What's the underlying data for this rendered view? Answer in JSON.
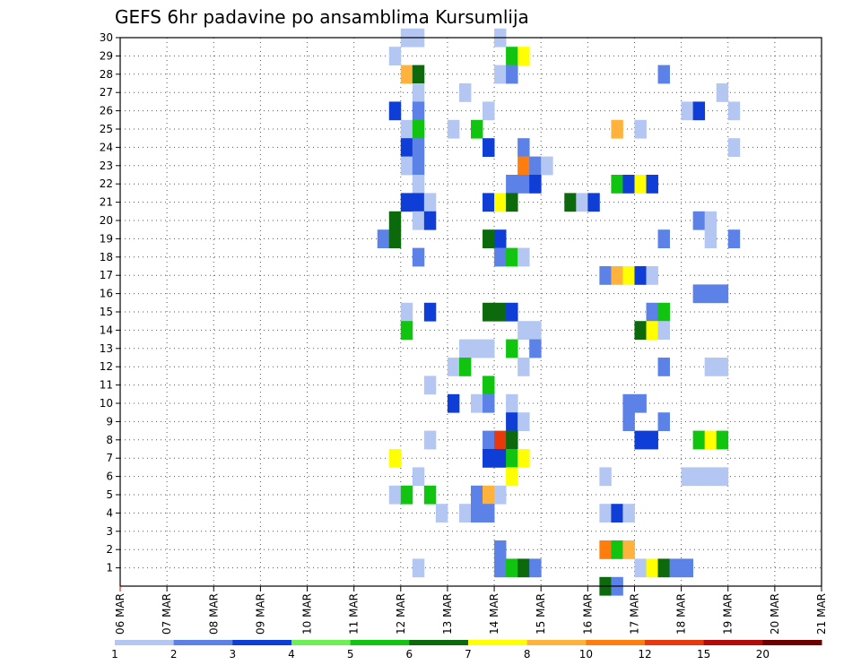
{
  "chart_data": {
    "type": "heatmap",
    "title": "GEFS 6hr padavine po ansamblima Kursumlija",
    "xlabel": "",
    "ylabel": "",
    "x_ticks": [
      "06 MAR",
      "07 MAR",
      "08 MAR",
      "09 MAR",
      "10 MAR",
      "11 MAR",
      "12 MAR",
      "13 MAR",
      "14 MAR",
      "15 MAR",
      "16 MAR",
      "17 MAR",
      "18 MAR",
      "19 MAR",
      "20 MAR",
      "21 MAR"
    ],
    "y_ticks": [
      "1",
      "2",
      "3",
      "4",
      "5",
      "6",
      "7",
      "8",
      "9",
      "10",
      "11",
      "12",
      "13",
      "14",
      "15",
      "16",
      "17",
      "18",
      "19",
      "20",
      "21",
      "22",
      "23",
      "24",
      "25",
      "26",
      "27",
      "28",
      "29",
      "30"
    ],
    "xlim": [
      "06 MAR",
      "21 MAR"
    ],
    "ylim": [
      0,
      30
    ],
    "time_step_hours": 6,
    "grid": true,
    "legend": {
      "placement": "bottom",
      "levels": [
        "1",
        "2",
        "3",
        "4",
        "5",
        "6",
        "7",
        "8",
        "10",
        "12",
        "15",
        "20"
      ],
      "colors": [
        "#b4c6f2",
        "#5c82e8",
        "#0f3ed6",
        "#6ef055",
        "#10c410",
        "#0c6a0c",
        "#ffff00",
        "#ffb23c",
        "#ff7d0c",
        "#e8380c",
        "#b40a0a",
        "#6e0000"
      ]
    },
    "cells": [
      {
        "t": 0,
        "m": 30,
        "v": 1
      },
      {
        "t": 1,
        "m": 30,
        "v": 1
      },
      {
        "t": 8,
        "m": 30,
        "v": 1
      },
      {
        "t": -1,
        "m": 29,
        "v": 1
      },
      {
        "t": 9,
        "m": 29,
        "v": 5
      },
      {
        "t": 10,
        "m": 29,
        "v": 7
      },
      {
        "t": 0,
        "m": 28,
        "v": 8
      },
      {
        "t": 1,
        "m": 28,
        "v": 6
      },
      {
        "t": 8,
        "m": 28,
        "v": 1
      },
      {
        "t": 9,
        "m": 28,
        "v": 2
      },
      {
        "t": 22,
        "m": 28,
        "v": 2
      },
      {
        "t": 1,
        "m": 27,
        "v": 1
      },
      {
        "t": 5,
        "m": 27,
        "v": 1
      },
      {
        "t": 27,
        "m": 27,
        "v": 1
      },
      {
        "t": -1,
        "m": 26,
        "v": 3
      },
      {
        "t": 1,
        "m": 26,
        "v": 2
      },
      {
        "t": 7,
        "m": 26,
        "v": 1
      },
      {
        "t": 24,
        "m": 26,
        "v": 1
      },
      {
        "t": 25,
        "m": 26,
        "v": 3
      },
      {
        "t": 28,
        "m": 26,
        "v": 1
      },
      {
        "t": 0,
        "m": 25,
        "v": 1
      },
      {
        "t": 1,
        "m": 25,
        "v": 5
      },
      {
        "t": 4,
        "m": 25,
        "v": 1
      },
      {
        "t": 6,
        "m": 25,
        "v": 5
      },
      {
        "t": 18,
        "m": 25,
        "v": 8
      },
      {
        "t": 20,
        "m": 25,
        "v": 1
      },
      {
        "t": 0,
        "m": 24,
        "v": 3
      },
      {
        "t": 1,
        "m": 24,
        "v": 2
      },
      {
        "t": 7,
        "m": 24,
        "v": 3
      },
      {
        "t": 10,
        "m": 24,
        "v": 2
      },
      {
        "t": 28,
        "m": 24,
        "v": 1
      },
      {
        "t": 0,
        "m": 23,
        "v": 1
      },
      {
        "t": 1,
        "m": 23,
        "v": 2
      },
      {
        "t": 10,
        "m": 23,
        "v": 10
      },
      {
        "t": 11,
        "m": 23,
        "v": 2
      },
      {
        "t": 12,
        "m": 23,
        "v": 1
      },
      {
        "t": 1,
        "m": 22,
        "v": 1
      },
      {
        "t": 9,
        "m": 22,
        "v": 2
      },
      {
        "t": 10,
        "m": 22,
        "v": 2
      },
      {
        "t": 11,
        "m": 22,
        "v": 3
      },
      {
        "t": 18,
        "m": 22,
        "v": 5
      },
      {
        "t": 19,
        "m": 22,
        "v": 3
      },
      {
        "t": 20,
        "m": 22,
        "v": 7
      },
      {
        "t": 21,
        "m": 22,
        "v": 3
      },
      {
        "t": 0,
        "m": 21,
        "v": 3
      },
      {
        "t": 1,
        "m": 21,
        "v": 3
      },
      {
        "t": 2,
        "m": 21,
        "v": 1
      },
      {
        "t": 7,
        "m": 21,
        "v": 3
      },
      {
        "t": 8,
        "m": 21,
        "v": 7
      },
      {
        "t": 9,
        "m": 21,
        "v": 6
      },
      {
        "t": 14,
        "m": 21,
        "v": 6
      },
      {
        "t": 15,
        "m": 21,
        "v": 1
      },
      {
        "t": 16,
        "m": 21,
        "v": 3
      },
      {
        "t": -1,
        "m": 20,
        "v": 6
      },
      {
        "t": 1,
        "m": 20,
        "v": 1
      },
      {
        "t": 2,
        "m": 20,
        "v": 3
      },
      {
        "t": 25,
        "m": 20,
        "v": 2
      },
      {
        "t": 26,
        "m": 20,
        "v": 1
      },
      {
        "t": -2,
        "m": 19,
        "v": 2
      },
      {
        "t": -1,
        "m": 19,
        "v": 6
      },
      {
        "t": 7,
        "m": 19,
        "v": 6
      },
      {
        "t": 8,
        "m": 19,
        "v": 3
      },
      {
        "t": 22,
        "m": 19,
        "v": 2
      },
      {
        "t": 26,
        "m": 19,
        "v": 1
      },
      {
        "t": 28,
        "m": 19,
        "v": 2
      },
      {
        "t": 1,
        "m": 18,
        "v": 2
      },
      {
        "t": 8,
        "m": 18,
        "v": 2
      },
      {
        "t": 9,
        "m": 18,
        "v": 5
      },
      {
        "t": 10,
        "m": 18,
        "v": 1
      },
      {
        "t": 17,
        "m": 17,
        "v": 2
      },
      {
        "t": 18,
        "m": 17,
        "v": 8
      },
      {
        "t": 19,
        "m": 17,
        "v": 7
      },
      {
        "t": 20,
        "m": 17,
        "v": 3
      },
      {
        "t": 21,
        "m": 17,
        "v": 1
      },
      {
        "t": 25,
        "m": 16,
        "v": 2
      },
      {
        "t": 26,
        "m": 16,
        "v": 2
      },
      {
        "t": 27,
        "m": 16,
        "v": 2
      },
      {
        "t": 0,
        "m": 15,
        "v": 1
      },
      {
        "t": 2,
        "m": 15,
        "v": 3
      },
      {
        "t": 7,
        "m": 15,
        "v": 6
      },
      {
        "t": 8,
        "m": 15,
        "v": 6
      },
      {
        "t": 9,
        "m": 15,
        "v": 3
      },
      {
        "t": 21,
        "m": 15,
        "v": 2
      },
      {
        "t": 22,
        "m": 15,
        "v": 5
      },
      {
        "t": 0,
        "m": 14,
        "v": 5
      },
      {
        "t": 10,
        "m": 14,
        "v": 1
      },
      {
        "t": 11,
        "m": 14,
        "v": 1
      },
      {
        "t": 20,
        "m": 14,
        "v": 6
      },
      {
        "t": 21,
        "m": 14,
        "v": 7
      },
      {
        "t": 22,
        "m": 14,
        "v": 1
      },
      {
        "t": 5,
        "m": 13,
        "v": 1
      },
      {
        "t": 6,
        "m": 13,
        "v": 1
      },
      {
        "t": 7,
        "m": 13,
        "v": 1
      },
      {
        "t": 9,
        "m": 13,
        "v": 5
      },
      {
        "t": 11,
        "m": 13,
        "v": 2
      },
      {
        "t": 4,
        "m": 12,
        "v": 1
      },
      {
        "t": 5,
        "m": 12,
        "v": 5
      },
      {
        "t": 10,
        "m": 12,
        "v": 1
      },
      {
        "t": 22,
        "m": 12,
        "v": 2
      },
      {
        "t": 26,
        "m": 12,
        "v": 1
      },
      {
        "t": 27,
        "m": 12,
        "v": 1
      },
      {
        "t": 2,
        "m": 11,
        "v": 1
      },
      {
        "t": 7,
        "m": 11,
        "v": 5
      },
      {
        "t": 4,
        "m": 10,
        "v": 3
      },
      {
        "t": 6,
        "m": 10,
        "v": 1
      },
      {
        "t": 7,
        "m": 10,
        "v": 2
      },
      {
        "t": 9,
        "m": 10,
        "v": 1
      },
      {
        "t": 19,
        "m": 10,
        "v": 2
      },
      {
        "t": 20,
        "m": 10,
        "v": 2
      },
      {
        "t": 9,
        "m": 9,
        "v": 3
      },
      {
        "t": 10,
        "m": 9,
        "v": 1
      },
      {
        "t": 19,
        "m": 9,
        "v": 2
      },
      {
        "t": 22,
        "m": 9,
        "v": 2
      },
      {
        "t": 2,
        "m": 8,
        "v": 1
      },
      {
        "t": 7,
        "m": 8,
        "v": 2
      },
      {
        "t": 8,
        "m": 8,
        "v": 12
      },
      {
        "t": 9,
        "m": 8,
        "v": 6
      },
      {
        "t": 20,
        "m": 8,
        "v": 3
      },
      {
        "t": 21,
        "m": 8,
        "v": 3
      },
      {
        "t": 25,
        "m": 8,
        "v": 5
      },
      {
        "t": 26,
        "m": 8,
        "v": 7
      },
      {
        "t": 27,
        "m": 8,
        "v": 5
      },
      {
        "t": -1,
        "m": 7,
        "v": 7
      },
      {
        "t": 7,
        "m": 7,
        "v": 3
      },
      {
        "t": 8,
        "m": 7,
        "v": 3
      },
      {
        "t": 9,
        "m": 7,
        "v": 5
      },
      {
        "t": 10,
        "m": 7,
        "v": 7
      },
      {
        "t": 1,
        "m": 6,
        "v": 1
      },
      {
        "t": 9,
        "m": 6,
        "v": 7
      },
      {
        "t": 17,
        "m": 6,
        "v": 1
      },
      {
        "t": 24,
        "m": 6,
        "v": 1
      },
      {
        "t": 25,
        "m": 6,
        "v": 1
      },
      {
        "t": 26,
        "m": 6,
        "v": 1
      },
      {
        "t": 27,
        "m": 6,
        "v": 1
      },
      {
        "t": -1,
        "m": 5,
        "v": 1
      },
      {
        "t": 0,
        "m": 5,
        "v": 5
      },
      {
        "t": 2,
        "m": 5,
        "v": 5
      },
      {
        "t": 6,
        "m": 5,
        "v": 2
      },
      {
        "t": 7,
        "m": 5,
        "v": 8
      },
      {
        "t": 8,
        "m": 5,
        "v": 1
      },
      {
        "t": 3,
        "m": 4,
        "v": 1
      },
      {
        "t": 5,
        "m": 4,
        "v": 1
      },
      {
        "t": 6,
        "m": 4,
        "v": 2
      },
      {
        "t": 7,
        "m": 4,
        "v": 2
      },
      {
        "t": 17,
        "m": 4,
        "v": 1
      },
      {
        "t": 18,
        "m": 4,
        "v": 3
      },
      {
        "t": 19,
        "m": 4,
        "v": 1
      },
      {
        "t": 8,
        "m": 2,
        "v": 2
      },
      {
        "t": 17,
        "m": 2,
        "v": 10
      },
      {
        "t": 18,
        "m": 2,
        "v": 5
      },
      {
        "t": 19,
        "m": 2,
        "v": 8
      },
      {
        "t": 1,
        "m": 1,
        "v": 1
      },
      {
        "t": 8,
        "m": 1,
        "v": 2
      },
      {
        "t": 9,
        "m": 1,
        "v": 5
      },
      {
        "t": 10,
        "m": 1,
        "v": 6
      },
      {
        "t": 11,
        "m": 1,
        "v": 2
      },
      {
        "t": 20,
        "m": 1,
        "v": 1
      },
      {
        "t": 21,
        "m": 1,
        "v": 7
      },
      {
        "t": 22,
        "m": 1,
        "v": 6
      },
      {
        "t": 23,
        "m": 1,
        "v": 2
      },
      {
        "t": 24,
        "m": 1,
        "v": 2
      },
      {
        "t": 17,
        "m": 0,
        "v": 6
      },
      {
        "t": 18,
        "m": 0,
        "v": 2
      }
    ]
  }
}
